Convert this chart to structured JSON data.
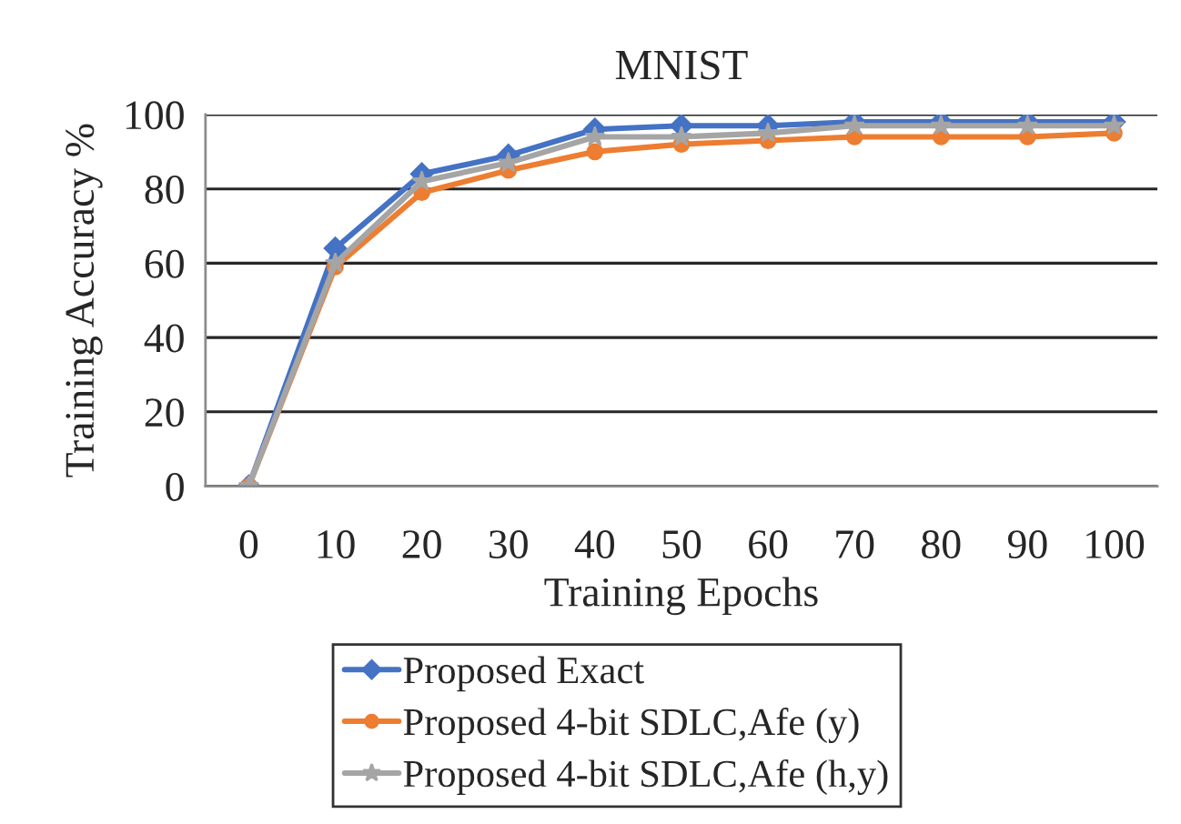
{
  "chart_data": {
    "type": "line",
    "title": "MNIST",
    "xlabel": "Training Epochs",
    "ylabel": "Training Accuracy %",
    "categories": [
      "0",
      "10",
      "20",
      "30",
      "40",
      "50",
      "60",
      "70",
      "80",
      "90",
      "100"
    ],
    "ylim": [
      0,
      100
    ],
    "yticks": [
      0,
      20,
      40,
      60,
      80,
      100
    ],
    "grid": "y",
    "legend": "bottom",
    "line_style": "solid",
    "series": [
      {
        "name": "Proposed Exact",
        "color": "#4472c4",
        "marker": "diamond",
        "values": [
          0,
          64,
          84,
          89,
          96,
          97,
          97,
          98,
          98,
          98,
          98
        ]
      },
      {
        "name": "Proposed 4-bit SDLC,Afe (y)",
        "color": "#ed7d31",
        "marker": "circle",
        "values": [
          0,
          59,
          79,
          85,
          90,
          92,
          93,
          94,
          94,
          94,
          95
        ]
      },
      {
        "name": "Proposed 4-bit SDLC,Afe (h,y)",
        "color": "#a5a5a5",
        "marker": "star",
        "values": [
          0,
          60,
          82,
          87,
          94,
          94,
          95,
          97,
          97,
          97,
          97
        ]
      }
    ]
  }
}
